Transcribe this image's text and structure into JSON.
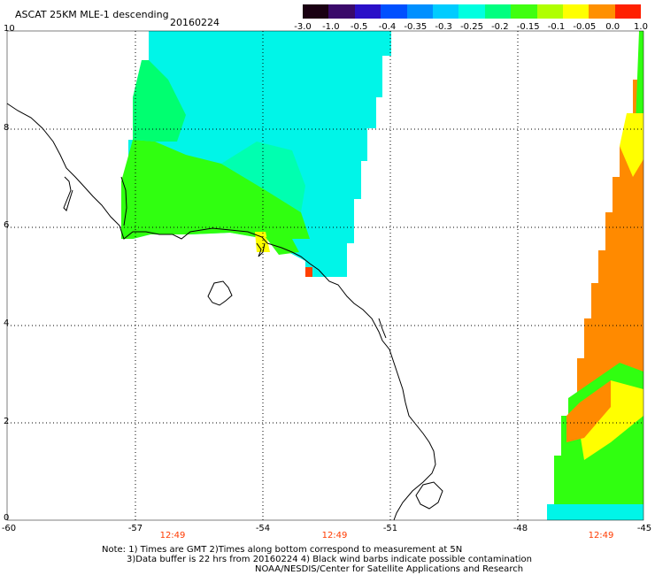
{
  "header": {
    "title": "ASCAT 25KM MLE-1 descending",
    "date": "20160224"
  },
  "colorbar": {
    "labels": [
      "-3.0",
      "-1.0",
      "-0.5",
      "-0.4",
      "-0.35",
      "-0.3",
      "-0.25",
      "-0.2",
      "-0.15",
      "-0.1",
      "-0.05",
      "0.0",
      "1.0"
    ],
    "colors": [
      "#1a0012",
      "#3a0a6a",
      "#2a10c8",
      "#0050ff",
      "#0090ff",
      "#00ccff",
      "#00ffe0",
      "#00ff80",
      "#40ff10",
      "#b0ff00",
      "#ffff00",
      "#ff9000",
      "#ff2000"
    ]
  },
  "axes": {
    "lat_labels": [
      "10",
      "8",
      "6",
      "4",
      "2",
      "0"
    ],
    "lon_labels": [
      "-60",
      "-57",
      "-54",
      "-51",
      "-48",
      "-45"
    ],
    "time_labels": [
      "12:49",
      "12:49",
      "12:49"
    ]
  },
  "notes": {
    "line1": "Note: 1) Times are GMT 2)Times along bottom correspond to measurement at 5N",
    "line2": "3)Data buffer is 22 hrs from 20160224 4) Black wind barbs indicate possible contamination",
    "line3": "NOAA/NESDIS/Center for Satellite Applications and Research"
  },
  "swath_colors": {
    "cyan": "#00f5e8",
    "aqua": "#00ffb0",
    "seagreen": "#00ff70",
    "green": "#30ff10",
    "yellow": "#ffff00",
    "orange": "#ff8a00",
    "red": "#ff4000"
  }
}
